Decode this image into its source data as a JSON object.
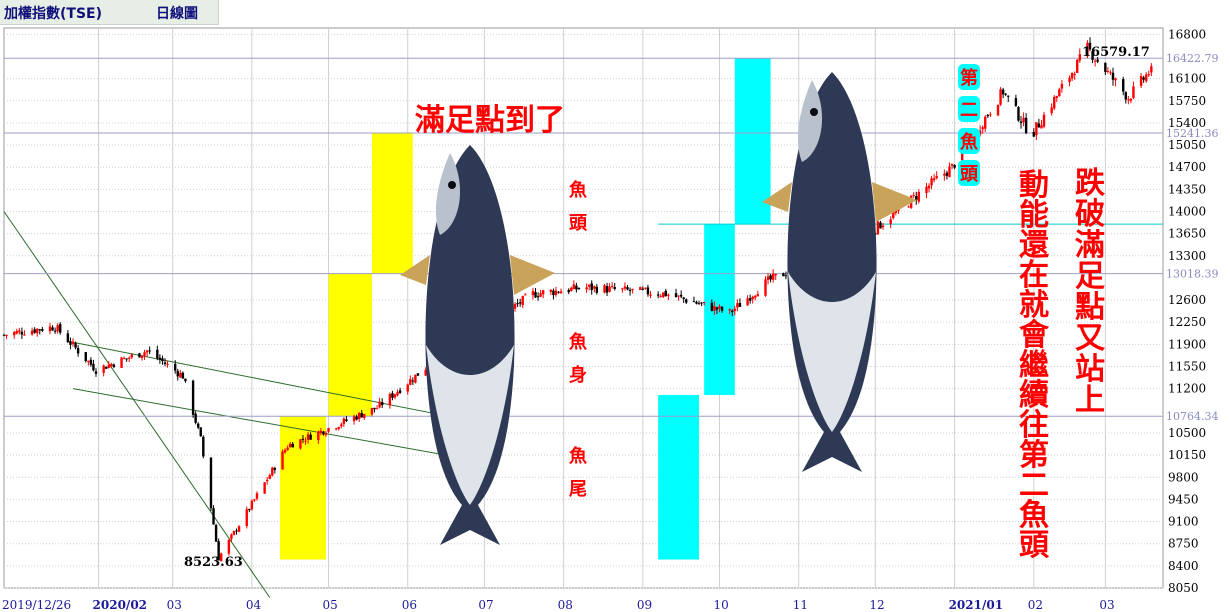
{
  "header": {
    "title": "加權指數(TSE)",
    "period": "日線圖"
  },
  "colors": {
    "up": "#ff0000",
    "down": "#000000",
    "yellow_box": "#ffff00",
    "cyan_box": "#00ffff",
    "grid": "#d0d0d0",
    "ref_line": "#9e9ec8",
    "annotation_red": "#ff0000",
    "fish_body": "#2e3a55"
  },
  "chart_data": {
    "type": "candlestick",
    "title": "加權指數(TSE) 日線圖",
    "x_tick_labels": [
      "2019/12/26",
      "2020/02",
      "03",
      "04",
      "05",
      "06",
      "07",
      "08",
      "09",
      "10",
      "11",
      "12",
      "2021/01",
      "02",
      "03"
    ],
    "y_tick_labels": [
      "16800",
      "16100",
      "15750",
      "15400",
      "15050",
      "14700",
      "14350",
      "14000",
      "13650",
      "13300",
      "12600",
      "12250",
      "11900",
      "11550",
      "11200",
      "10500",
      "10150",
      "9800",
      "9450",
      "9100",
      "8750",
      "8400",
      "8050"
    ],
    "ylim": [
      8050,
      16900
    ],
    "reference_lines": [
      "16422.79",
      "15241.36",
      "13018.39",
      "10764.34"
    ],
    "marked_extremes": [
      "16579.17",
      "8523.63"
    ],
    "annotations": {
      "yellow_top": "滿足點到了",
      "fish_head": "魚頭",
      "fish_body": "魚身",
      "fish_tail": "魚尾",
      "second_fish_head": "第二魚頭",
      "momentum": "動能還在就會繼續往第二魚頭",
      "broke_and_recovered": "跌破滿足點又站上"
    },
    "approx_path": [
      {
        "date": "2019/12/26",
        "value": 12050
      },
      {
        "date": "2020/01/03",
        "value": 12110
      },
      {
        "date": "2020/01/15",
        "value": 12180
      },
      {
        "date": "2020/01/31",
        "value": 11500
      },
      {
        "date": "2020/02/20",
        "value": 11800
      },
      {
        "date": "2020/03/05",
        "value": 11400
      },
      {
        "date": "2020/03/12",
        "value": 10400
      },
      {
        "date": "2020/03/19",
        "value": 8523.63
      },
      {
        "date": "2020/04/15",
        "value": 10300
      },
      {
        "date": "2020/05/20",
        "value": 10900
      },
      {
        "date": "2020/06/10",
        "value": 11600
      },
      {
        "date": "2020/07/20",
        "value": 12700
      },
      {
        "date": "2020/08/10",
        "value": 12800
      },
      {
        "date": "2020/09/10",
        "value": 12700
      },
      {
        "date": "2020/10/05",
        "value": 12400
      },
      {
        "date": "2020/10/20",
        "value": 12900
      },
      {
        "date": "2020/11/30",
        "value": 13700
      },
      {
        "date": "2020/12/31",
        "value": 14700
      },
      {
        "date": "2021/01/20",
        "value": 15900
      },
      {
        "date": "2021/01/31",
        "value": 15200
      },
      {
        "date": "2021/02/22",
        "value": 16579.17
      },
      {
        "date": "2021/03/10",
        "value": 15800
      },
      {
        "date": "2021/03/18",
        "value": 16200
      }
    ]
  }
}
